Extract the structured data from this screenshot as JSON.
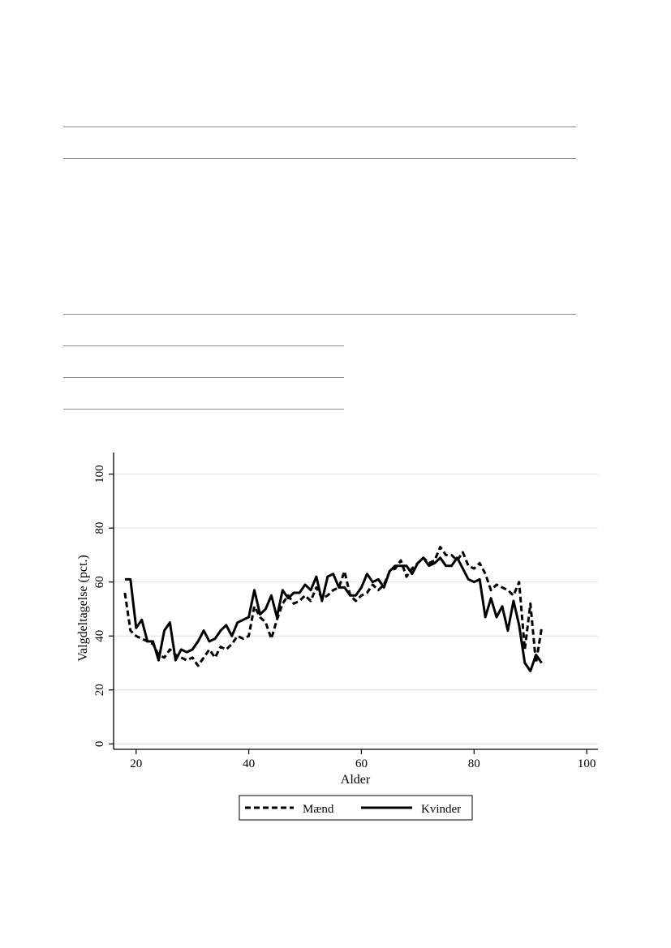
{
  "chart_data": {
    "type": "line",
    "xlabel": "Alder",
    "ylabel": "Valgdeltagelse (pct.)",
    "xlim": [
      16,
      102
    ],
    "ylim": [
      -2,
      108
    ],
    "xticks": [
      20,
      40,
      60,
      80,
      100
    ],
    "yticks": [
      0,
      20,
      40,
      60,
      80,
      100
    ],
    "grid": true,
    "legend_position": "bottom",
    "series": [
      {
        "name": "Mænd",
        "style": "dashed",
        "color": "#000000",
        "x": [
          18,
          19,
          20,
          21,
          22,
          23,
          24,
          25,
          26,
          27,
          28,
          29,
          30,
          31,
          32,
          33,
          34,
          35,
          36,
          37,
          38,
          39,
          40,
          41,
          42,
          43,
          44,
          45,
          46,
          47,
          48,
          49,
          50,
          51,
          52,
          53,
          54,
          55,
          56,
          57,
          58,
          59,
          60,
          61,
          62,
          63,
          64,
          65,
          66,
          67,
          68,
          69,
          70,
          71,
          72,
          73,
          74,
          75,
          76,
          77,
          78,
          79,
          80,
          81,
          82,
          83,
          84,
          85,
          86,
          87,
          88,
          89,
          90,
          91,
          92
        ],
        "y": [
          56,
          42,
          40,
          39,
          38,
          37,
          33,
          32,
          35,
          33,
          32,
          31,
          32,
          29,
          32,
          35,
          32,
          36,
          35,
          37,
          40,
          39,
          40,
          51,
          47,
          45,
          39,
          46,
          52,
          55,
          52,
          53,
          55,
          53,
          58,
          54,
          55,
          57,
          58,
          64,
          55,
          53,
          55,
          56,
          59,
          57,
          59,
          64,
          65,
          68,
          62,
          65,
          67,
          69,
          67,
          68,
          73,
          70,
          70,
          68,
          71,
          66,
          65,
          67,
          63,
          57,
          59,
          58,
          57,
          55,
          60,
          35,
          52,
          30,
          43
        ],
        "values": [
          56,
          42,
          40,
          39,
          38,
          37,
          33,
          32,
          35,
          33,
          32,
          31,
          32,
          29,
          32,
          35,
          32,
          36,
          35,
          37,
          40,
          39,
          40,
          51,
          47,
          45,
          39,
          46,
          52,
          55,
          52,
          53,
          55,
          53,
          58,
          54,
          55,
          57,
          58,
          64,
          55,
          53,
          55,
          56,
          59,
          57,
          59,
          64,
          65,
          68,
          62,
          65,
          67,
          69,
          67,
          68,
          73,
          70,
          70,
          68,
          71,
          66,
          65,
          67,
          63,
          57,
          59,
          58,
          57,
          55,
          60,
          35,
          52,
          30,
          43
        ]
      },
      {
        "name": "Kvinder",
        "style": "solid",
        "color": "#000000",
        "x": [
          18,
          19,
          20,
          21,
          22,
          23,
          24,
          25,
          26,
          27,
          28,
          29,
          30,
          31,
          32,
          33,
          34,
          35,
          36,
          37,
          38,
          39,
          40,
          41,
          42,
          43,
          44,
          45,
          46,
          47,
          48,
          49,
          50,
          51,
          52,
          53,
          54,
          55,
          56,
          57,
          58,
          59,
          60,
          61,
          62,
          63,
          64,
          65,
          66,
          67,
          68,
          69,
          70,
          71,
          72,
          73,
          74,
          75,
          76,
          77,
          78,
          79,
          80,
          81,
          82,
          83,
          84,
          85,
          86,
          87,
          88,
          89,
          90,
          91,
          92
        ],
        "y": [
          61,
          61,
          43,
          46,
          38,
          38,
          31,
          42,
          45,
          31,
          35,
          34,
          35,
          38,
          42,
          38,
          39,
          42,
          44,
          40,
          45,
          46,
          47,
          57,
          48,
          50,
          55,
          47,
          57,
          54,
          56,
          56,
          59,
          57,
          62,
          53,
          62,
          63,
          58,
          58,
          55,
          55,
          58,
          63,
          60,
          61,
          58,
          64,
          66,
          66,
          66,
          63,
          67,
          69,
          66,
          67,
          69,
          66,
          66,
          69,
          65,
          61,
          60,
          61,
          47,
          54,
          47,
          51,
          42,
          53,
          44,
          30,
          27,
          33,
          30
        ],
        "values": [
          61,
          61,
          43,
          46,
          38,
          38,
          31,
          42,
          45,
          31,
          35,
          34,
          35,
          38,
          42,
          38,
          39,
          42,
          44,
          40,
          45,
          46,
          47,
          57,
          48,
          50,
          55,
          47,
          57,
          54,
          56,
          56,
          59,
          57,
          62,
          53,
          62,
          63,
          58,
          58,
          55,
          55,
          58,
          63,
          60,
          61,
          58,
          64,
          66,
          66,
          66,
          63,
          67,
          69,
          66,
          67,
          69,
          66,
          66,
          69,
          65,
          61,
          60,
          61,
          47,
          54,
          47,
          51,
          42,
          53,
          44,
          30,
          27,
          33,
          30
        ]
      }
    ]
  }
}
